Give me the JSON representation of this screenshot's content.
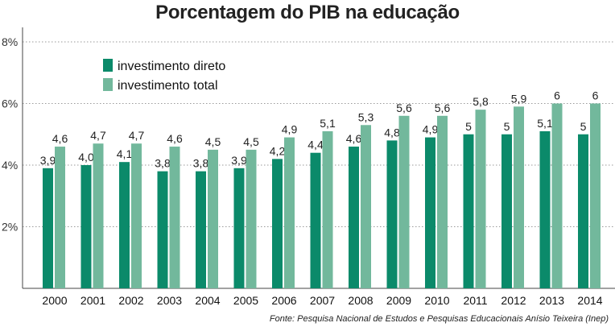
{
  "title": "Porcentagem do PIB na educação",
  "source": "Fonte: Pesquisa Nacional de Estudos e Pesquisas Educacionais Anísio Teixeira (Inep)",
  "colors": {
    "direto": "#0b8a6a",
    "total": "#72b89c",
    "grid": "#9a9a9a"
  },
  "chart_data": {
    "type": "bar",
    "categories": [
      "2000",
      "2001",
      "2002",
      "2003",
      "2004",
      "2005",
      "2006",
      "2007",
      "2008",
      "2009",
      "2010",
      "2011",
      "2012",
      "2013",
      "2014"
    ],
    "series": [
      {
        "name": "investimento direto",
        "values": [
          3.9,
          4.0,
          4.1,
          3.8,
          3.8,
          3.9,
          4.2,
          4.4,
          4.6,
          4.8,
          4.9,
          5,
          5,
          5.1,
          5
        ],
        "labels": [
          "3,9",
          "4,0",
          "4,1",
          "3,8",
          "3,8",
          "3,9",
          "4,2",
          "4,4",
          "4,6",
          "4,8",
          "4,9",
          "5",
          "5",
          "5,1",
          "5"
        ]
      },
      {
        "name": "investimento total",
        "values": [
          4.6,
          4.7,
          4.7,
          4.6,
          4.5,
          4.5,
          4.9,
          5.1,
          5.3,
          5.6,
          5.6,
          5.8,
          5.9,
          6,
          6
        ],
        "labels": [
          "4,6",
          "4,7",
          "4,7",
          "4,6",
          "4,5",
          "4,5",
          "4,9",
          "5,1",
          "5,3",
          "5,6",
          "5,6",
          "5,8",
          "5,9",
          "6",
          "6"
        ]
      }
    ],
    "yticks": [
      {
        "value": 2,
        "label": "2%"
      },
      {
        "value": 4,
        "label": "4%"
      },
      {
        "value": 6,
        "label": "6%"
      },
      {
        "value": 8,
        "label": "8%"
      }
    ],
    "ylim": [
      0,
      8
    ],
    "grid": true,
    "legend": "top-left"
  }
}
